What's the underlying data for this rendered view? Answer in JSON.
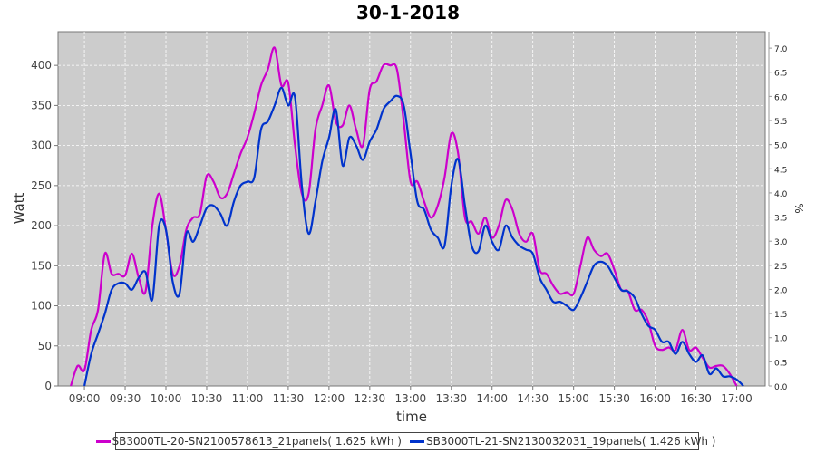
{
  "chart_data": {
    "type": "line",
    "title": "30-1-2018",
    "xlabel": "time",
    "ylabel": "Watt",
    "y2label": "%",
    "xlim": [
      "08:40",
      "17:21"
    ],
    "ylim": [
      0,
      442
    ],
    "y2lim": [
      0,
      7.34
    ],
    "grid": true,
    "legend_position": "bottom",
    "x_ticks": [
      "09:00",
      "09:30",
      "10:00",
      "10:30",
      "11:00",
      "11:30",
      "12:00",
      "12:30",
      "13:00",
      "13:30",
      "14:00",
      "14:30",
      "15:00",
      "15:30",
      "16:00",
      "16:30",
      "17:00"
    ],
    "y_ticks": [
      0,
      50,
      100,
      150,
      200,
      250,
      300,
      350,
      400
    ],
    "y2_ticks": [
      "0.0",
      "0.5",
      "1.0",
      "1.5",
      "2.0",
      "2.5",
      "3.0",
      "3.5",
      "4.0",
      "4.5",
      "5.0",
      "5.5",
      "6.0",
      "6.5",
      "7.0"
    ],
    "series": [
      {
        "name": "SB3000TL-20-SN2100578613_21panels",
        "legend": "SB3000TL-20-SN2100578613_21panels( 1.625 kWh )",
        "color": "#cc00cc",
        "start": "08:50",
        "step_minutes": 5,
        "values": [
          0,
          25,
          20,
          70,
          95,
          165,
          140,
          140,
          138,
          165,
          135,
          118,
          200,
          240,
          195,
          140,
          150,
          195,
          210,
          215,
          262,
          255,
          235,
          240,
          265,
          290,
          310,
          340,
          375,
          395,
          422,
          375,
          378,
          300,
          240,
          240,
          320,
          350,
          375,
          330,
          325,
          350,
          320,
          300,
          370,
          380,
          400,
          400,
          395,
          330,
          255,
          255,
          230,
          210,
          225,
          260,
          315,
          290,
          210,
          205,
          190,
          210,
          185,
          200,
          232,
          220,
          190,
          180,
          190,
          145,
          140,
          125,
          115,
          117,
          115,
          150,
          185,
          170,
          162,
          165,
          145,
          120,
          118,
          95,
          95,
          80,
          50,
          45,
          48,
          45,
          70,
          45,
          48,
          35,
          23,
          25,
          25,
          15,
          0
        ]
      },
      {
        "name": "SB3000TL-21-SN2130032031_19panels",
        "legend": "SB3000TL-21-SN2130032031_19panels( 1.426 kWh )",
        "color": "#0033cc",
        "start": "09:00",
        "step_minutes": 5,
        "values": [
          0,
          40,
          65,
          90,
          120,
          128,
          128,
          120,
          135,
          142,
          108,
          200,
          195,
          130,
          115,
          190,
          180,
          200,
          222,
          225,
          215,
          200,
          230,
          250,
          255,
          260,
          320,
          330,
          350,
          372,
          350,
          360,
          250,
          190,
          230,
          280,
          310,
          345,
          275,
          310,
          300,
          282,
          305,
          320,
          345,
          355,
          362,
          350,
          290,
          230,
          220,
          195,
          185,
          175,
          250,
          283,
          225,
          175,
          168,
          200,
          180,
          170,
          200,
          185,
          175,
          170,
          165,
          135,
          120,
          105,
          105,
          100,
          95,
          110,
          130,
          150,
          155,
          150,
          135,
          120,
          118,
          110,
          90,
          75,
          70,
          55,
          55,
          40,
          55,
          40,
          30,
          38,
          15,
          22,
          12,
          12,
          8,
          0
        ]
      }
    ]
  }
}
